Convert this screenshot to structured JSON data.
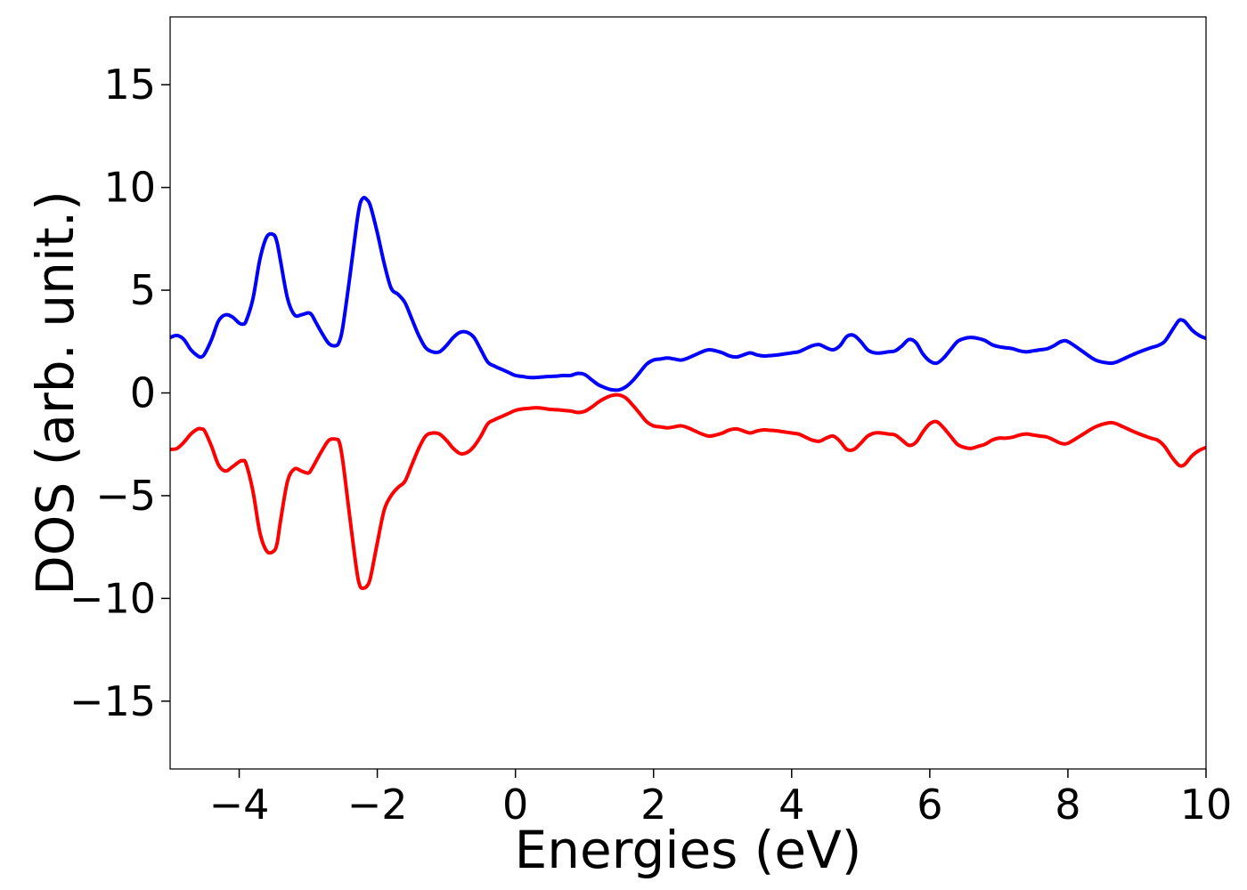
{
  "chart_data": {
    "type": "line",
    "title": "",
    "xlabel": "Energies (eV)",
    "ylabel": "DOS (arb. unit.)",
    "xlim": [
      -5,
      10
    ],
    "ylim": [
      -18.3,
      18.3
    ],
    "x_ticks": [
      -4,
      -2,
      0,
      2,
      4,
      6,
      8,
      10
    ],
    "x_tick_labels": [
      "−4",
      "−2",
      "0",
      "2",
      "4",
      "6",
      "8",
      "10"
    ],
    "y_ticks": [
      15,
      10,
      5,
      0,
      -5,
      -10,
      -15
    ],
    "y_tick_labels": [
      "15",
      "10",
      "5",
      "0",
      "−5",
      "−10",
      "−15"
    ],
    "grid": false,
    "legend": "none",
    "series": [
      {
        "color": "#0000ff",
        "x": [
          -5.0,
          -4.9,
          -4.8,
          -4.7,
          -4.6,
          -4.55,
          -4.5,
          -4.4,
          -4.3,
          -4.2,
          -4.1,
          -4.0,
          -3.95,
          -3.9,
          -3.8,
          -3.7,
          -3.6,
          -3.5,
          -3.45,
          -3.4,
          -3.3,
          -3.2,
          -3.1,
          -3.0,
          -2.95,
          -2.9,
          -2.8,
          -2.7,
          -2.6,
          -2.55,
          -2.5,
          -2.4,
          -2.3,
          -2.25,
          -2.2,
          -2.15,
          -2.1,
          -2.0,
          -1.9,
          -1.8,
          -1.7,
          -1.6,
          -1.5,
          -1.4,
          -1.3,
          -1.2,
          -1.1,
          -1.0,
          -0.9,
          -0.8,
          -0.7,
          -0.6,
          -0.5,
          -0.4,
          -0.3,
          -0.2,
          -0.1,
          0.0,
          0.1,
          0.2,
          0.3,
          0.4,
          0.5,
          0.6,
          0.7,
          0.8,
          0.9,
          1.0,
          1.1,
          1.2,
          1.3,
          1.4,
          1.5,
          1.6,
          1.7,
          1.8,
          1.9,
          2.0,
          2.1,
          2.2,
          2.3,
          2.4,
          2.5,
          2.6,
          2.7,
          2.8,
          2.9,
          3.0,
          3.1,
          3.2,
          3.3,
          3.4,
          3.5,
          3.6,
          3.7,
          3.8,
          3.9,
          4.0,
          4.1,
          4.2,
          4.3,
          4.4,
          4.5,
          4.6,
          4.7,
          4.8,
          4.9,
          5.0,
          5.1,
          5.2,
          5.3,
          5.4,
          5.5,
          5.6,
          5.7,
          5.8,
          5.9,
          6.0,
          6.1,
          6.2,
          6.3,
          6.4,
          6.5,
          6.6,
          6.7,
          6.8,
          6.9,
          7.0,
          7.1,
          7.2,
          7.3,
          7.4,
          7.5,
          7.6,
          7.7,
          7.8,
          7.9,
          8.0,
          8.2,
          8.4,
          8.6,
          8.7,
          8.8,
          9.0,
          9.2,
          9.3,
          9.4,
          9.5,
          9.6,
          9.65,
          9.7,
          9.8,
          9.9,
          10.0
        ],
        "y": [
          2.7,
          2.8,
          2.6,
          2.1,
          1.8,
          1.75,
          1.9,
          2.6,
          3.5,
          3.8,
          3.7,
          3.4,
          3.35,
          3.5,
          4.6,
          6.5,
          7.6,
          7.7,
          7.3,
          6.4,
          4.6,
          3.8,
          3.8,
          3.9,
          3.8,
          3.5,
          2.9,
          2.4,
          2.3,
          2.5,
          3.2,
          5.6,
          8.2,
          9.2,
          9.5,
          9.4,
          9.1,
          7.8,
          6.3,
          5.1,
          4.8,
          4.4,
          3.6,
          2.8,
          2.2,
          2.0,
          2.0,
          2.3,
          2.7,
          2.95,
          2.95,
          2.7,
          2.1,
          1.5,
          1.3,
          1.15,
          1.0,
          0.85,
          0.8,
          0.75,
          0.75,
          0.78,
          0.8,
          0.82,
          0.85,
          0.85,
          0.95,
          0.9,
          0.65,
          0.4,
          0.25,
          0.15,
          0.15,
          0.3,
          0.6,
          1.0,
          1.4,
          1.6,
          1.65,
          1.7,
          1.65,
          1.6,
          1.7,
          1.85,
          2.0,
          2.1,
          2.05,
          1.95,
          1.8,
          1.75,
          1.85,
          1.95,
          1.85,
          1.8,
          1.82,
          1.85,
          1.9,
          1.95,
          2.0,
          2.15,
          2.3,
          2.35,
          2.2,
          2.1,
          2.3,
          2.75,
          2.8,
          2.5,
          2.1,
          1.95,
          1.95,
          2.0,
          2.05,
          2.3,
          2.6,
          2.45,
          1.9,
          1.55,
          1.45,
          1.7,
          2.1,
          2.5,
          2.65,
          2.7,
          2.65,
          2.55,
          2.35,
          2.25,
          2.2,
          2.15,
          2.05,
          2.0,
          2.05,
          2.1,
          2.15,
          2.3,
          2.5,
          2.5,
          2.05,
          1.6,
          1.45,
          1.5,
          1.65,
          1.95,
          2.2,
          2.3,
          2.5,
          3.0,
          3.5,
          3.55,
          3.45,
          3.05,
          2.8,
          2.65
        ]
      },
      {
        "color": "#ff0000",
        "x": [
          -5.0,
          -4.9,
          -4.8,
          -4.7,
          -4.6,
          -4.55,
          -4.5,
          -4.4,
          -4.3,
          -4.2,
          -4.1,
          -4.0,
          -3.95,
          -3.9,
          -3.8,
          -3.7,
          -3.6,
          -3.5,
          -3.45,
          -3.4,
          -3.3,
          -3.2,
          -3.1,
          -3.0,
          -2.95,
          -2.9,
          -2.8,
          -2.7,
          -2.6,
          -2.55,
          -2.5,
          -2.4,
          -2.3,
          -2.25,
          -2.2,
          -2.15,
          -2.1,
          -2.0,
          -1.9,
          -1.8,
          -1.7,
          -1.6,
          -1.5,
          -1.4,
          -1.3,
          -1.2,
          -1.1,
          -1.0,
          -0.9,
          -0.8,
          -0.7,
          -0.6,
          -0.5,
          -0.4,
          -0.3,
          -0.2,
          -0.1,
          0.0,
          0.1,
          0.2,
          0.3,
          0.4,
          0.5,
          0.6,
          0.7,
          0.8,
          0.9,
          1.0,
          1.1,
          1.2,
          1.3,
          1.4,
          1.5,
          1.6,
          1.7,
          1.8,
          1.9,
          2.0,
          2.1,
          2.2,
          2.3,
          2.4,
          2.5,
          2.6,
          2.7,
          2.8,
          2.9,
          3.0,
          3.1,
          3.2,
          3.3,
          3.4,
          3.5,
          3.6,
          3.7,
          3.8,
          3.9,
          4.0,
          4.1,
          4.2,
          4.3,
          4.4,
          4.5,
          4.6,
          4.7,
          4.8,
          4.9,
          5.0,
          5.1,
          5.2,
          5.3,
          5.4,
          5.5,
          5.6,
          5.7,
          5.8,
          5.9,
          6.0,
          6.1,
          6.2,
          6.3,
          6.4,
          6.5,
          6.6,
          6.7,
          6.8,
          6.9,
          7.0,
          7.1,
          7.2,
          7.3,
          7.4,
          7.5,
          7.6,
          7.7,
          7.8,
          7.9,
          8.0,
          8.2,
          8.4,
          8.6,
          8.7,
          8.8,
          9.0,
          9.2,
          9.3,
          9.4,
          9.5,
          9.6,
          9.65,
          9.7,
          9.8,
          9.9,
          10.0
        ],
        "y": [
          -2.75,
          -2.7,
          -2.4,
          -2.0,
          -1.75,
          -1.75,
          -1.85,
          -2.6,
          -3.5,
          -3.8,
          -3.6,
          -3.35,
          -3.3,
          -3.45,
          -4.8,
          -6.8,
          -7.7,
          -7.7,
          -7.3,
          -6.2,
          -4.3,
          -3.7,
          -3.8,
          -3.9,
          -3.7,
          -3.4,
          -2.8,
          -2.3,
          -2.25,
          -2.4,
          -3.3,
          -6.0,
          -8.6,
          -9.4,
          -9.5,
          -9.4,
          -9.0,
          -7.3,
          -5.7,
          -5.0,
          -4.6,
          -4.3,
          -3.5,
          -2.7,
          -2.1,
          -1.95,
          -2.0,
          -2.3,
          -2.7,
          -2.95,
          -2.9,
          -2.6,
          -2.1,
          -1.5,
          -1.3,
          -1.15,
          -1.0,
          -0.85,
          -0.78,
          -0.75,
          -0.72,
          -0.75,
          -0.8,
          -0.82,
          -0.85,
          -0.88,
          -0.95,
          -0.9,
          -0.7,
          -0.45,
          -0.25,
          -0.12,
          -0.1,
          -0.25,
          -0.6,
          -1.0,
          -1.4,
          -1.6,
          -1.65,
          -1.7,
          -1.65,
          -1.6,
          -1.7,
          -1.85,
          -2.0,
          -2.1,
          -2.05,
          -1.95,
          -1.8,
          -1.75,
          -1.85,
          -1.95,
          -1.85,
          -1.8,
          -1.82,
          -1.85,
          -1.9,
          -1.95,
          -2.0,
          -2.15,
          -2.3,
          -2.35,
          -2.2,
          -2.1,
          -2.35,
          -2.75,
          -2.75,
          -2.45,
          -2.1,
          -1.95,
          -1.95,
          -2.0,
          -2.05,
          -2.3,
          -2.55,
          -2.4,
          -1.9,
          -1.5,
          -1.4,
          -1.7,
          -2.1,
          -2.5,
          -2.65,
          -2.7,
          -2.6,
          -2.5,
          -2.3,
          -2.2,
          -2.2,
          -2.15,
          -2.05,
          -2.0,
          -2.05,
          -2.1,
          -2.15,
          -2.3,
          -2.45,
          -2.45,
          -2.05,
          -1.65,
          -1.45,
          -1.5,
          -1.65,
          -1.95,
          -2.2,
          -2.3,
          -2.6,
          -3.1,
          -3.5,
          -3.55,
          -3.45,
          -3.05,
          -2.8,
          -2.65
        ]
      }
    ]
  }
}
